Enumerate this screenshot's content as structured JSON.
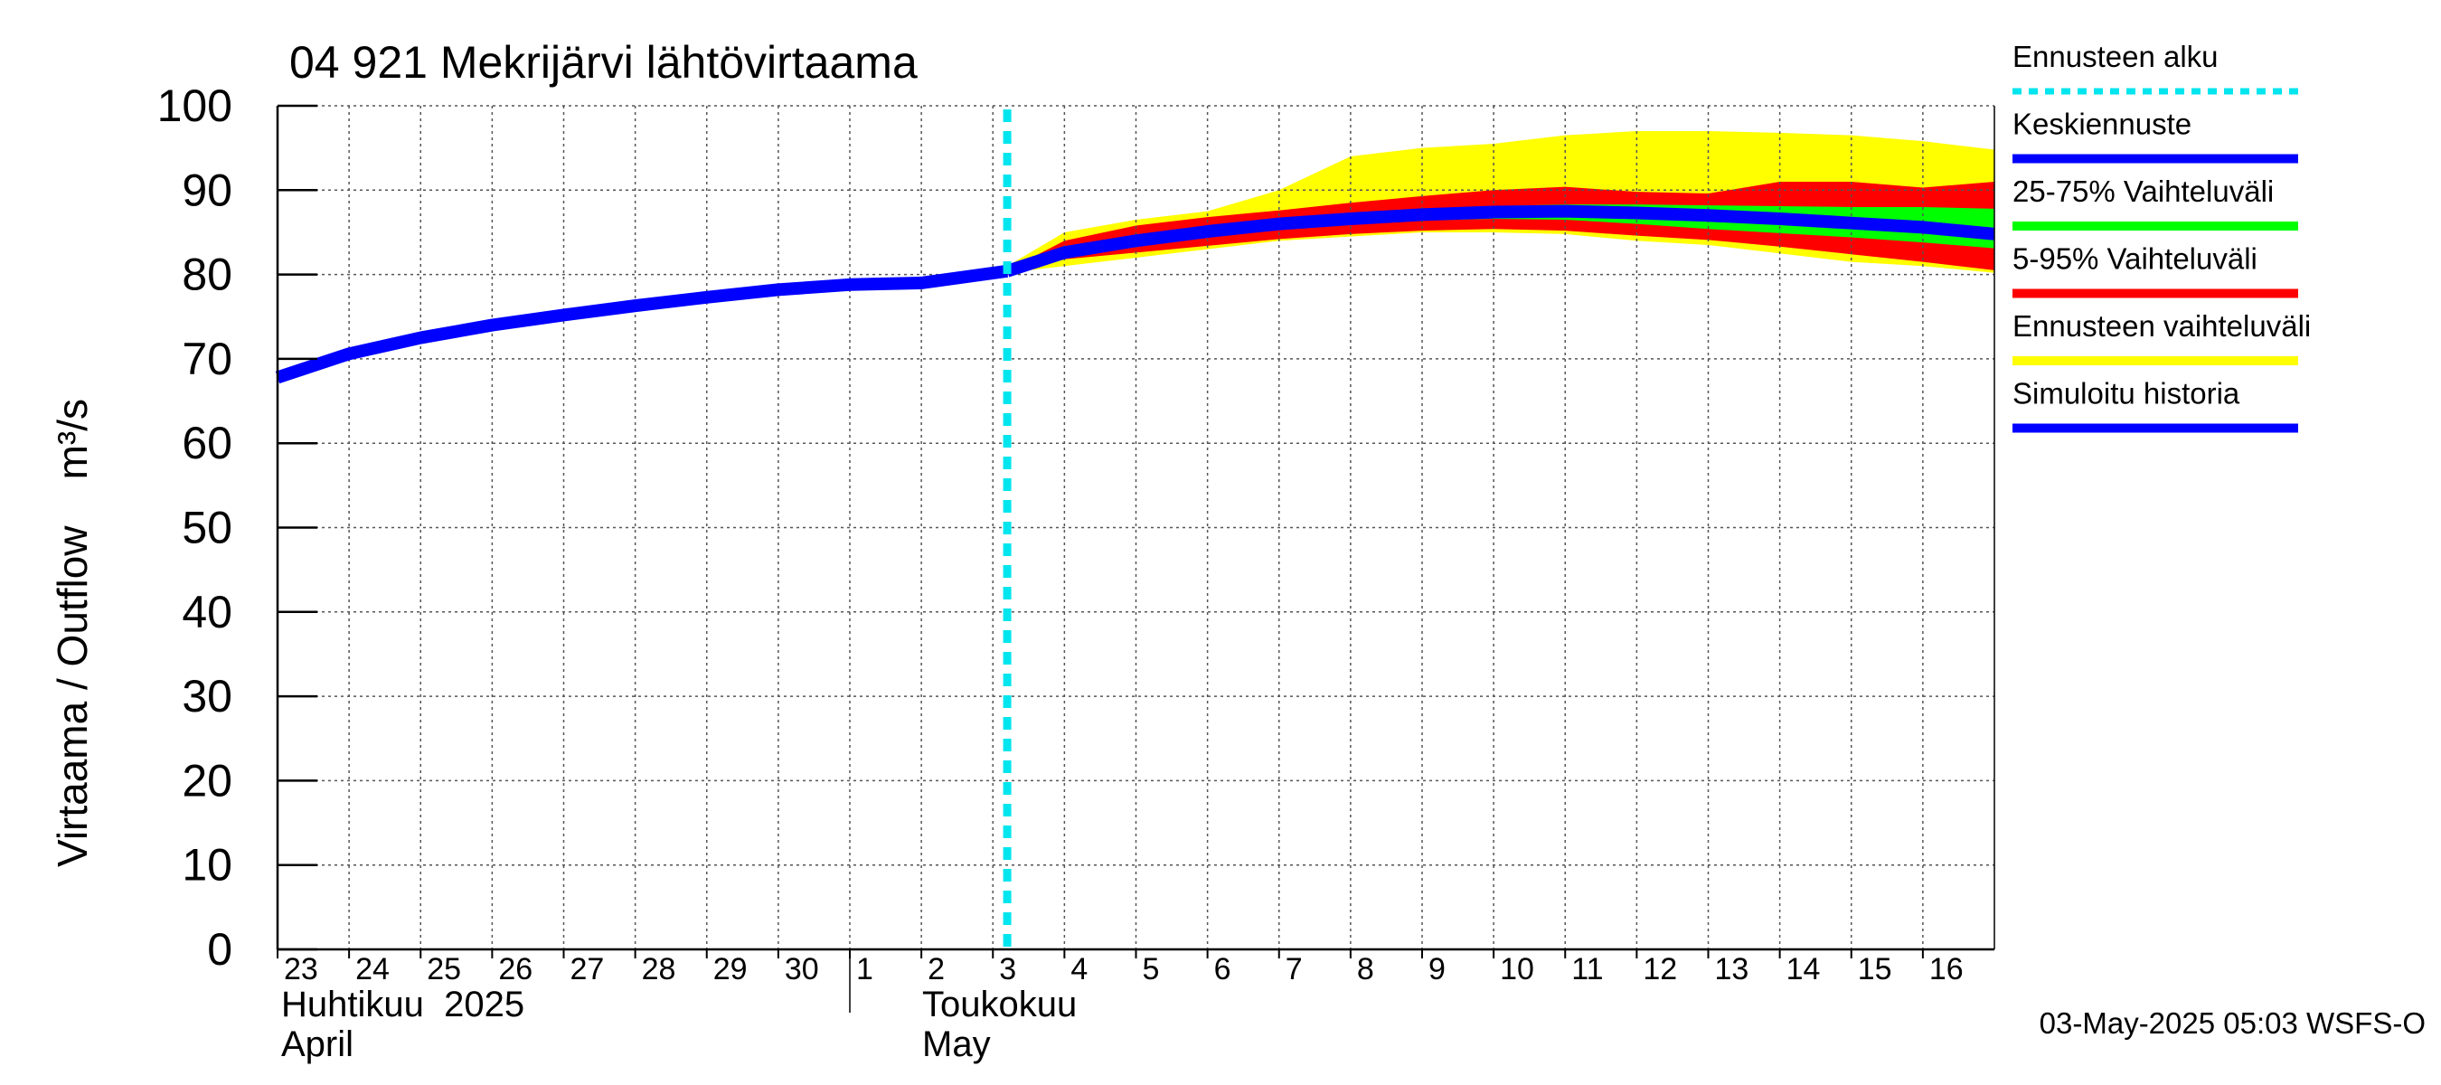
{
  "chart_data": {
    "type": "area",
    "title": "04 921 Mekrijärvi lähtövirtaama",
    "ylabel": "Virtaama / Outflow    m³/s",
    "ylim": [
      0,
      100
    ],
    "yticks": [
      "0",
      "10",
      "20",
      "30",
      "40",
      "50",
      "60",
      "70",
      "80",
      "90",
      "100"
    ],
    "x_day_range": [
      0,
      24
    ],
    "x_day_labels": [
      "23",
      "24",
      "25",
      "26",
      "27",
      "28",
      "29",
      "30",
      "1",
      "2",
      "3",
      "4",
      "5",
      "6",
      "7",
      "8",
      "9",
      "10",
      "11",
      "12",
      "13",
      "14",
      "15",
      "16"
    ],
    "months": [
      {
        "fi": "Huhtikuu  2025",
        "en": "April",
        "start_day": 0
      },
      {
        "fi": "Toukokuu",
        "en": "May",
        "start_day": 8
      }
    ],
    "forecast_start_day": 10.2,
    "series": [
      {
        "name": "Ennusteen vaihteluväli",
        "kind": "band",
        "color": "#ffff00",
        "x": [
          10.2,
          11,
          12,
          13,
          14,
          15,
          16,
          17,
          18,
          19,
          20,
          21,
          22,
          23,
          24
        ],
        "upper": [
          81,
          85,
          86.5,
          87.5,
          90,
          94,
          95,
          95.5,
          96.5,
          97,
          97,
          96.8,
          96.5,
          95.8,
          94.8
        ],
        "lower": [
          80.2,
          81,
          82,
          83,
          84,
          84.5,
          85,
          85,
          84.8,
          84,
          83.5,
          82.5,
          81.5,
          81,
          80.2
        ]
      },
      {
        "name": "5-95% Vaihteluväli",
        "kind": "band",
        "color": "#ff0000",
        "x": [
          10.2,
          11,
          12,
          13,
          14,
          15,
          16,
          17,
          18,
          19,
          20,
          21,
          22,
          23,
          24
        ],
        "upper": [
          80.5,
          84,
          85.8,
          86.8,
          87.6,
          88.5,
          89.3,
          90,
          90.4,
          89.8,
          89.6,
          91,
          91,
          90.3,
          91
        ],
        "lower": [
          80.2,
          81.8,
          82.6,
          83.4,
          84.2,
          84.8,
          85.2,
          85.4,
          85.2,
          84.6,
          84.1,
          83.3,
          82.4,
          81.5,
          80.5
        ]
      },
      {
        "name": "25-75% Vaihteluväli",
        "kind": "band",
        "color": "#00ff00",
        "x": [
          10.2,
          11,
          12,
          13,
          14,
          15,
          16,
          17,
          18,
          19,
          20,
          21,
          22,
          23,
          24
        ],
        "upper": [
          80.5,
          82.8,
          84.3,
          85.5,
          86.5,
          87.3,
          87.8,
          88.1,
          88.3,
          88.3,
          88.2,
          88.1,
          88,
          88,
          87.8
        ],
        "lower": [
          80.3,
          82.4,
          83.7,
          84.7,
          85.5,
          86,
          86.4,
          86.6,
          86.5,
          86,
          85.4,
          84.9,
          84.4,
          83.8,
          83.1
        ]
      },
      {
        "name": "Simuloitu historia",
        "kind": "line",
        "color": "#0000ff",
        "x": [
          0,
          1,
          2,
          3,
          4,
          5,
          6,
          7,
          8,
          9,
          10.2
        ],
        "values": [
          67.8,
          70.6,
          72.5,
          74,
          75.2,
          76.3,
          77.3,
          78.2,
          78.8,
          79,
          80.4
        ]
      },
      {
        "name": "Keskiennuste",
        "kind": "line",
        "color": "#0000ff",
        "x": [
          10.2,
          11,
          12,
          13,
          14,
          15,
          16,
          17,
          18,
          19,
          20,
          21,
          22,
          23,
          24
        ],
        "values": [
          80.4,
          82.6,
          84,
          85.1,
          86,
          86.6,
          87.1,
          87.4,
          87.5,
          87.3,
          87,
          86.6,
          86.1,
          85.6,
          84.8
        ]
      }
    ],
    "legend": [
      {
        "label": "Ennusteen alku",
        "color": "#00e5ee",
        "style": "dashed"
      },
      {
        "label": "Keskiennuste",
        "color": "#0000ff",
        "style": "solid"
      },
      {
        "label": "25-75% Vaihteluväli",
        "color": "#00ff00",
        "style": "solid"
      },
      {
        "label": "5-95% Vaihteluväli",
        "color": "#ff0000",
        "style": "solid"
      },
      {
        "label": "Ennusteen vaihteluväli",
        "color": "#ffff00",
        "style": "solid"
      },
      {
        "label": "Simuloitu historia",
        "color": "#0000ff",
        "style": "solid"
      }
    ],
    "footer": "03-May-2025 05:03 WSFS-O",
    "legend_position": "right"
  }
}
